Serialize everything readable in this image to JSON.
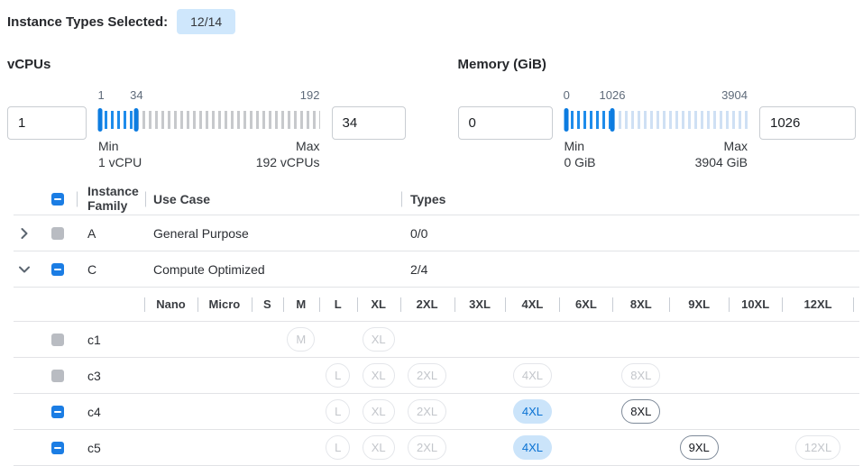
{
  "topbar": {
    "label": "Instance Types Selected:",
    "badge": "12/14"
  },
  "filters": {
    "vcpus": {
      "title": "vCPUs",
      "min_input": "1",
      "max_input": "34",
      "range_min": 1,
      "range_max": 192,
      "selected_min": 1,
      "selected_max": 34,
      "scale_start": "1",
      "scale_current": "34",
      "scale_end": "192",
      "min_label": "Min",
      "min_value": "1 vCPU",
      "max_label": "Max",
      "max_value": "192 vCPUs"
    },
    "memory": {
      "title": "Memory (GiB)",
      "min_input": "0",
      "max_input": "1026",
      "range_min": 0,
      "range_max": 3904,
      "selected_min": 0,
      "selected_max": 1026,
      "scale_start": "0",
      "scale_current": "1026",
      "scale_end": "3904",
      "min_label": "Min",
      "min_value": "0 GiB",
      "max_label": "Max",
      "max_value": "3904 GiB"
    }
  },
  "table": {
    "columns": {
      "family": "Instance Family",
      "use_case": "Use Case",
      "types": "Types"
    },
    "header_checkbox": "indeterminate",
    "size_columns": [
      "Nano",
      "Micro",
      "S",
      "M",
      "L",
      "XL",
      "2XL",
      "3XL",
      "4XL",
      "6XL",
      "8XL",
      "9XL",
      "10XL",
      "12XL"
    ],
    "families": [
      {
        "name": "A",
        "use_case": "General Purpose",
        "types": "0/0",
        "expanded": false,
        "checkbox": "disabled",
        "instances": []
      },
      {
        "name": "C",
        "use_case": "Compute Optimized",
        "types": "2/4",
        "expanded": true,
        "checkbox": "indeterminate",
        "instances": [
          {
            "name": "c1",
            "checkbox": "disabled",
            "chips": [
              {
                "size": "M",
                "state": "disabled"
              },
              {
                "size": "XL",
                "state": "disabled"
              }
            ]
          },
          {
            "name": "c3",
            "checkbox": "disabled",
            "chips": [
              {
                "size": "L",
                "state": "disabled"
              },
              {
                "size": "XL",
                "state": "disabled"
              },
              {
                "size": "2XL",
                "state": "disabled"
              },
              {
                "size": "4XL",
                "state": "disabled"
              },
              {
                "size": "8XL",
                "state": "disabled"
              }
            ]
          },
          {
            "name": "c4",
            "checkbox": "indeterminate",
            "chips": [
              {
                "size": "L",
                "state": "disabled"
              },
              {
                "size": "XL",
                "state": "disabled"
              },
              {
                "size": "2XL",
                "state": "disabled"
              },
              {
                "size": "4XL",
                "state": "selected"
              },
              {
                "size": "8XL",
                "state": "enabled"
              }
            ]
          },
          {
            "name": "c5",
            "checkbox": "indeterminate",
            "chips": [
              {
                "size": "L",
                "state": "disabled"
              },
              {
                "size": "XL",
                "state": "disabled"
              },
              {
                "size": "2XL",
                "state": "disabled"
              },
              {
                "size": "4XL",
                "state": "selected"
              },
              {
                "size": "9XL",
                "state": "enabled"
              },
              {
                "size": "12XL",
                "state": "disabled"
              }
            ]
          }
        ]
      }
    ]
  },
  "colors": {
    "accent_blue": "#1b7de4",
    "tick_selected": "#1e8ceb",
    "slider_handle": "#0d7ce0",
    "tick_rest_vcpus": "#c7c9cc",
    "tick_rest_memory": "#cfe0f4",
    "badge_bg": "#cfe7fc",
    "chip_selected_bg": "#cbe4fa",
    "chip_selected_text": "#0a72d3",
    "checkbox_disabled": "#b9bcc2"
  }
}
